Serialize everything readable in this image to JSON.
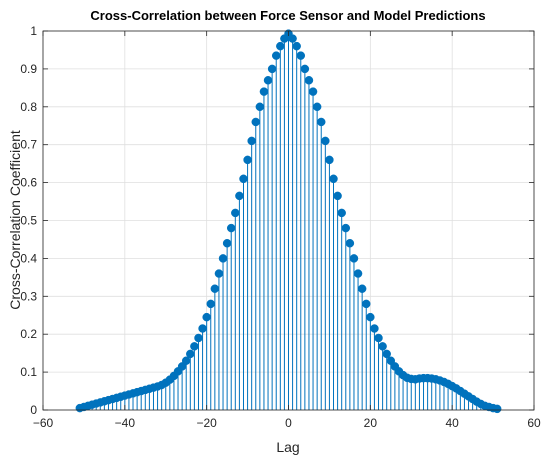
{
  "chart_data": {
    "type": "stem",
    "title": "Cross-Correlation between Force Sensor and Model Predictions",
    "xlabel": "Lag",
    "ylabel": "Cross-Correlation Coefficient",
    "xlim": [
      -60,
      60
    ],
    "ylim": [
      0,
      1
    ],
    "xticks": [
      -60,
      -40,
      -20,
      0,
      20,
      40,
      60
    ],
    "yticks": [
      0,
      0.1,
      0.2,
      0.3,
      0.4,
      0.5,
      0.6,
      0.7,
      0.8,
      0.9,
      1
    ],
    "xtick_labels": [
      "−60",
      "−40",
      "−20",
      "0",
      "20",
      "40",
      "60"
    ],
    "ytick_labels": [
      "0",
      "0.1",
      "0.2",
      "0.3",
      "0.4",
      "0.5",
      "0.6",
      "0.7",
      "0.8",
      "0.9",
      "1"
    ],
    "grid": true,
    "series_color": "#0072BD",
    "x": [
      -51,
      -50,
      -49,
      -48,
      -47,
      -46,
      -45,
      -44,
      -43,
      -42,
      -41,
      -40,
      -39,
      -38,
      -37,
      -36,
      -35,
      -34,
      -33,
      -32,
      -31,
      -30,
      -29,
      -28,
      -27,
      -26,
      -25,
      -24,
      -23,
      -22,
      -21,
      -20,
      -19,
      -18,
      -17,
      -16,
      -15,
      -14,
      -13,
      -12,
      -11,
      -10,
      -9,
      -8,
      -7,
      -6,
      -5,
      -4,
      -3,
      -2,
      -1,
      0,
      1,
      2,
      3,
      4,
      5,
      6,
      7,
      8,
      9,
      10,
      11,
      12,
      13,
      14,
      15,
      16,
      17,
      18,
      19,
      20,
      21,
      22,
      23,
      24,
      25,
      26,
      27,
      28,
      29,
      30,
      31,
      32,
      33,
      34,
      35,
      36,
      37,
      38,
      39,
      40,
      41,
      42,
      43,
      44,
      45,
      46,
      47,
      48,
      49,
      50,
      51
    ],
    "y": [
      0.005,
      0.008,
      0.011,
      0.014,
      0.017,
      0.02,
      0.023,
      0.026,
      0.029,
      0.032,
      0.035,
      0.038,
      0.041,
      0.044,
      0.047,
      0.05,
      0.053,
      0.056,
      0.059,
      0.062,
      0.066,
      0.072,
      0.08,
      0.09,
      0.102,
      0.115,
      0.13,
      0.148,
      0.168,
      0.19,
      0.215,
      0.245,
      0.28,
      0.32,
      0.36,
      0.4,
      0.44,
      0.48,
      0.52,
      0.565,
      0.61,
      0.66,
      0.71,
      0.76,
      0.8,
      0.84,
      0.87,
      0.9,
      0.935,
      0.96,
      0.98,
      0.993,
      0.98,
      0.96,
      0.935,
      0.9,
      0.87,
      0.84,
      0.8,
      0.76,
      0.71,
      0.66,
      0.61,
      0.565,
      0.52,
      0.48,
      0.44,
      0.4,
      0.36,
      0.32,
      0.28,
      0.245,
      0.215,
      0.19,
      0.168,
      0.148,
      0.13,
      0.115,
      0.102,
      0.092,
      0.085,
      0.082,
      0.081,
      0.083,
      0.084,
      0.084,
      0.083,
      0.081,
      0.078,
      0.074,
      0.069,
      0.063,
      0.057,
      0.05,
      0.043,
      0.036,
      0.029,
      0.022,
      0.016,
      0.011,
      0.008,
      0.005,
      0.003
    ]
  }
}
